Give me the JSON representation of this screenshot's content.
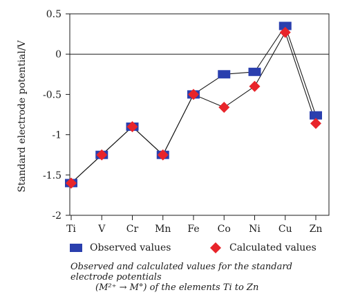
{
  "chart_data": {
    "type": "line",
    "title": "",
    "xlabel": "",
    "ylabel": "Standard electrode potential/V",
    "categories": [
      "Ti",
      "V",
      "Cr",
      "Mn",
      "Fe",
      "Co",
      "Ni",
      "Cu",
      "Zn"
    ],
    "ylim": [
      -2,
      0.5
    ],
    "yticks": [
      0.5,
      0,
      -0.5,
      -1,
      -1.5,
      -2
    ],
    "ytick_labels": [
      "0.5",
      "0",
      "-0.5",
      "-1",
      "-1.5",
      "-2"
    ],
    "zero_line": true,
    "grid": false,
    "legend_position": "bottom",
    "series": [
      {
        "name": "Observed values",
        "marker": "square",
        "color": "#2a3fae",
        "values": [
          -1.6,
          -1.25,
          -0.9,
          -1.25,
          -0.5,
          -0.25,
          -0.22,
          0.35,
          -0.76
        ]
      },
      {
        "name": "Calculated values",
        "marker": "diamond",
        "color": "#e8242a",
        "values": [
          -1.6,
          -1.25,
          -0.9,
          -1.25,
          -0.5,
          -0.66,
          -0.4,
          0.27,
          -0.86
        ]
      }
    ]
  },
  "caption": {
    "line1": "Observed and calculated values for the standard",
    "line2": "electrode potentials",
    "line3": "(M²⁺ → M°) of the elements Ti to Zn"
  }
}
